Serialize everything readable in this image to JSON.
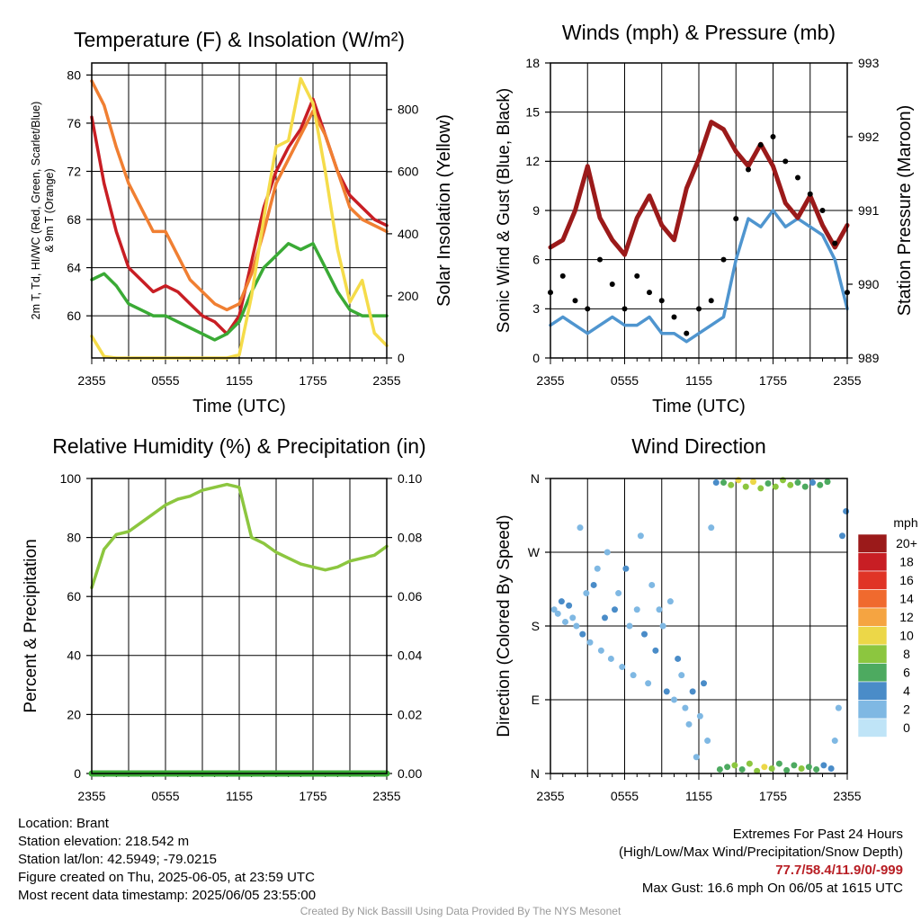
{
  "chart_data": [
    {
      "type": "line",
      "title": "Temperature (F) & Insolation (W/m²)",
      "xlabel": "Time (UTC)",
      "ylabel": "2m T, Td, HI/WC (Red, Green, Scarlet/Blue) & 9m T (Orange)",
      "ylabel2": "Solar Insolation (Yellow)",
      "x_ticks": [
        "2355",
        "0555",
        "1155",
        "1755",
        "2355"
      ],
      "ylim": [
        56.5,
        81
      ],
      "y_ticks": [
        60,
        64,
        68,
        72,
        76,
        80
      ],
      "ylim2": [
        0,
        950
      ],
      "y2_ticks": [
        0,
        200,
        400,
        600,
        800
      ],
      "x_hours": [
        0,
        1,
        2,
        3,
        4,
        5,
        6,
        7,
        8,
        9,
        10,
        11,
        12,
        13,
        14,
        15,
        16,
        17,
        18,
        19,
        20,
        21,
        22,
        23,
        24
      ],
      "series": [
        {
          "name": "2m T",
          "color": "#c81e24",
          "axis": "left",
          "values": [
            76.5,
            71,
            67,
            64,
            63,
            62,
            62.5,
            62,
            61,
            60,
            59.5,
            58.5,
            60,
            64.5,
            69,
            72,
            74,
            75.5,
            78,
            75,
            72,
            70,
            69,
            68,
            67.5
          ]
        },
        {
          "name": "9m T",
          "color": "#f07f32",
          "axis": "left",
          "values": [
            79.5,
            77.5,
            74,
            71,
            69,
            67,
            67,
            65,
            63,
            62,
            61,
            60.5,
            61,
            63.5,
            67,
            71,
            73,
            75,
            77,
            75,
            72,
            69,
            68,
            67.5,
            67
          ]
        },
        {
          "name": "Td",
          "color": "#3aaa35",
          "axis": "left",
          "values": [
            63,
            63.5,
            62.5,
            61,
            60.5,
            60,
            60,
            59.5,
            59,
            58.5,
            58,
            58.5,
            59.5,
            62,
            64,
            65,
            66,
            65.5,
            66,
            64,
            62,
            60.5,
            60,
            60,
            60
          ]
        },
        {
          "name": "Solar Insolation",
          "color": "#f5dc4a",
          "axis": "right",
          "values": [
            70,
            5,
            0,
            0,
            0,
            0,
            0,
            0,
            0,
            0,
            0,
            0,
            10,
            200,
            450,
            680,
            700,
            900,
            820,
            600,
            350,
            180,
            250,
            80,
            40
          ]
        }
      ]
    },
    {
      "type": "line",
      "title": "Winds (mph) & Pressure (mb)",
      "xlabel": "Time (UTC)",
      "ylabel": "Sonic Wind & Gust (Blue, Black)",
      "ylabel2": "Station Pressure (Maroon)",
      "x_ticks": [
        "2355",
        "0555",
        "1155",
        "1755",
        "2355"
      ],
      "ylim": [
        0,
        18
      ],
      "y_ticks": [
        0,
        3,
        6,
        9,
        12,
        15,
        18
      ],
      "ylim2": [
        989,
        993
      ],
      "y2_ticks": [
        989,
        990,
        991,
        992,
        993
      ],
      "x_hours": [
        0,
        1,
        2,
        3,
        4,
        5,
        6,
        7,
        8,
        9,
        10,
        11,
        12,
        13,
        14,
        15,
        16,
        17,
        18,
        19,
        20,
        21,
        22,
        23,
        24
      ],
      "series": [
        {
          "name": "Sonic Wind",
          "color": "#4f95cf",
          "axis": "left",
          "values": [
            2,
            2.5,
            2,
            1.5,
            2,
            2.5,
            2,
            2,
            2.5,
            1.5,
            1.5,
            1,
            1.5,
            2,
            2.5,
            6,
            8.5,
            8,
            9,
            8,
            8.5,
            8,
            7.5,
            6,
            3
          ]
        },
        {
          "name": "Station Pressure",
          "color": "#9b1a1a",
          "axis": "right",
          "values": [
            990.5,
            990.6,
            991,
            991.6,
            990.9,
            990.6,
            990.4,
            990.9,
            991.2,
            990.8,
            990.6,
            991.3,
            991.7,
            992.2,
            992.1,
            991.8,
            991.6,
            991.9,
            991.6,
            991.1,
            990.9,
            991.2,
            990.8,
            990.5,
            990.8
          ]
        },
        {
          "name": "Gust",
          "color": "#000000",
          "axis": "left",
          "mode": "scatter",
          "values": [
            4,
            5,
            3.5,
            3,
            6,
            4.5,
            3,
            5,
            4,
            3.5,
            2.5,
            1.5,
            3,
            3.5,
            6,
            8.5,
            11.5,
            13,
            13.5,
            12,
            11,
            10,
            9,
            7,
            4
          ]
        }
      ]
    },
    {
      "type": "line",
      "title": "Relative Humidity (%) & Precipitation (in)",
      "ylabel": "Percent & Precipitation",
      "x_ticks": [
        "2355",
        "0555",
        "1155",
        "1755",
        "2355"
      ],
      "ylim": [
        0,
        100
      ],
      "y_ticks": [
        0,
        20,
        40,
        60,
        80,
        100
      ],
      "ylim2": [
        0,
        0.1
      ],
      "y2_ticks": [
        "0.00",
        "0.02",
        "0.04",
        "0.06",
        "0.08",
        "0.10"
      ],
      "x_hours": [
        0,
        1,
        2,
        3,
        4,
        5,
        6,
        7,
        8,
        9,
        10,
        11,
        12,
        13,
        14,
        15,
        16,
        17,
        18,
        19,
        20,
        21,
        22,
        23,
        24
      ],
      "series": [
        {
          "name": "Relative Humidity",
          "color": "#8cc63f",
          "axis": "left",
          "values": [
            63,
            76,
            81,
            82,
            85,
            88,
            91,
            93,
            94,
            96,
            97,
            98,
            97,
            80,
            78,
            75,
            73,
            71,
            70,
            69,
            70,
            72,
            73,
            74,
            77
          ]
        },
        {
          "name": "Precipitation",
          "color": "#3aaa35",
          "axis": "right",
          "values": [
            0,
            0,
            0,
            0,
            0,
            0,
            0,
            0,
            0,
            0,
            0,
            0,
            0,
            0,
            0,
            0,
            0,
            0,
            0,
            0,
            0,
            0,
            0,
            0,
            0
          ]
        }
      ]
    },
    {
      "type": "scatter",
      "title": "Wind Direction",
      "ylabel": "Direction (Colored By Speed)",
      "x_ticks": [
        "2355",
        "0555",
        "1155",
        "1755",
        "2355"
      ],
      "y_ticks": [
        "N",
        "E",
        "S",
        "W",
        "N"
      ],
      "ylim": [
        0,
        360
      ],
      "colorbar_title": "mph",
      "colorbar_labels": [
        "20+",
        "18",
        "16",
        "14",
        "12",
        "10",
        "8",
        "6",
        "4",
        "2",
        "0"
      ],
      "colorbar_colors": [
        "#9b1a1a",
        "#c81e24",
        "#e03426",
        "#f06a2e",
        "#f5a441",
        "#ecd748",
        "#8cc63f",
        "#4daa60",
        "#4a8cc8",
        "#7fb8e3",
        "#bfe4f7"
      ],
      "points": [
        [
          0.3,
          200,
          2
        ],
        [
          0.6,
          195,
          3
        ],
        [
          0.9,
          210,
          4
        ],
        [
          1.2,
          185,
          3
        ],
        [
          1.5,
          205,
          4
        ],
        [
          1.8,
          190,
          2
        ],
        [
          2.1,
          180,
          3
        ],
        [
          2.4,
          300,
          2
        ],
        [
          2.6,
          170,
          4
        ],
        [
          2.9,
          220,
          3
        ],
        [
          3.2,
          160,
          2
        ],
        [
          3.5,
          230,
          4
        ],
        [
          3.8,
          250,
          3
        ],
        [
          4.1,
          150,
          2
        ],
        [
          4.4,
          190,
          4
        ],
        [
          4.6,
          270,
          3
        ],
        [
          4.9,
          140,
          2
        ],
        [
          5.2,
          200,
          4
        ],
        [
          5.5,
          220,
          3
        ],
        [
          5.8,
          130,
          2
        ],
        [
          6.1,
          250,
          4
        ],
        [
          6.4,
          180,
          3
        ],
        [
          6.7,
          120,
          2
        ],
        [
          7.0,
          200,
          3
        ],
        [
          7.3,
          290,
          2
        ],
        [
          7.6,
          170,
          4
        ],
        [
          7.9,
          110,
          3
        ],
        [
          8.2,
          230,
          2
        ],
        [
          8.5,
          150,
          4
        ],
        [
          8.8,
          200,
          3
        ],
        [
          9.1,
          180,
          2
        ],
        [
          9.4,
          100,
          4
        ],
        [
          9.7,
          210,
          3
        ],
        [
          10.0,
          90,
          2
        ],
        [
          10.3,
          140,
          4
        ],
        [
          10.6,
          120,
          3
        ],
        [
          10.9,
          80,
          2
        ],
        [
          11.2,
          60,
          3
        ],
        [
          11.5,
          100,
          4
        ],
        [
          11.8,
          20,
          2
        ],
        [
          12.1,
          70,
          3
        ],
        [
          12.4,
          110,
          4
        ],
        [
          12.7,
          40,
          3
        ],
        [
          13.0,
          300,
          2
        ],
        [
          13.4,
          355,
          5
        ],
        [
          13.7,
          5,
          6
        ],
        [
          14.0,
          355,
          7
        ],
        [
          14.3,
          8,
          6
        ],
        [
          14.6,
          352,
          9
        ],
        [
          14.9,
          10,
          8
        ],
        [
          15.2,
          358,
          10
        ],
        [
          15.5,
          5,
          7
        ],
        [
          15.8,
          350,
          9
        ],
        [
          16.1,
          12,
          8
        ],
        [
          16.4,
          356,
          11
        ],
        [
          16.7,
          3,
          9
        ],
        [
          17.0,
          348,
          8
        ],
        [
          17.3,
          8,
          10
        ],
        [
          17.6,
          354,
          7
        ],
        [
          17.9,
          6,
          9
        ],
        [
          18.2,
          350,
          8
        ],
        [
          18.5,
          12,
          7
        ],
        [
          18.8,
          358,
          9
        ],
        [
          19.1,
          4,
          6
        ],
        [
          19.4,
          352,
          8
        ],
        [
          19.7,
          10,
          7
        ],
        [
          20.0,
          355,
          6
        ],
        [
          20.3,
          6,
          8
        ],
        [
          20.6,
          350,
          7
        ],
        [
          20.9,
          8,
          6
        ],
        [
          21.2,
          355,
          5
        ],
        [
          21.5,
          5,
          7
        ],
        [
          21.8,
          352,
          6
        ],
        [
          22.1,
          10,
          5
        ],
        [
          22.4,
          356,
          6
        ],
        [
          22.7,
          6,
          4
        ],
        [
          23.0,
          40,
          3
        ],
        [
          23.3,
          80,
          2
        ],
        [
          23.6,
          290,
          4
        ],
        [
          23.9,
          320,
          5
        ]
      ]
    }
  ],
  "info": {
    "location": "Location: Brant",
    "elevation": "Station elevation: 218.542 m",
    "latlon": "Station lat/lon: 42.5949; -79.0215",
    "created": "Figure created on Thu, 2025-06-05, at 23:59 UTC",
    "recent": "Most recent data timestamp: 2025/06/05 23:55:00"
  },
  "extremes": {
    "title": "Extremes For Past 24 Hours",
    "subtitle": "(High/Low/Max Wind/Precipitation/Snow Depth)",
    "values": "77.7/58.4/11.9/0/-999",
    "gust": "Max Gust: 16.6 mph On 06/05 at 1615 UTC"
  },
  "credit": "Created By Nick Bassill Using Data Provided By The NYS Mesonet"
}
